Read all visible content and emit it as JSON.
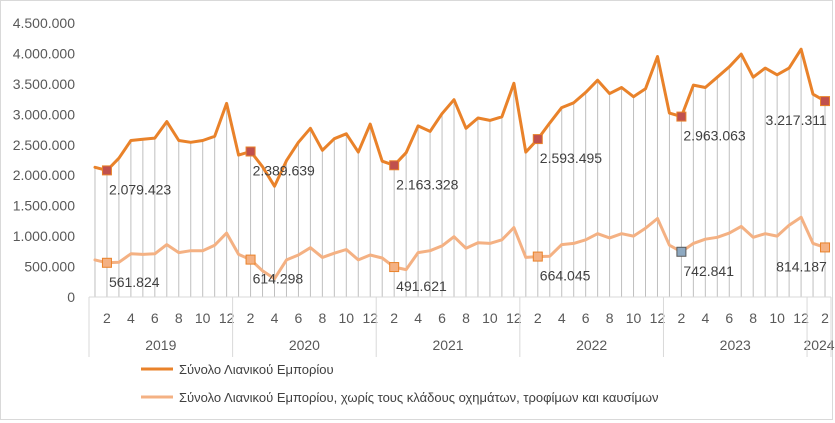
{
  "chart_data": {
    "type": "line",
    "ylim": [
      0,
      4500000
    ],
    "yticks": [
      "0",
      "500.000",
      "1.000.000",
      "1.500.000",
      "2.000.000",
      "2.500.000",
      "3.000.000",
      "3.500.000",
      "4.000.000",
      "4.500.000"
    ],
    "xlabel": "",
    "ylabel": "",
    "month_tick_labels": [
      "2",
      "4",
      "6",
      "8",
      "10",
      "12"
    ],
    "last_year_month_tick_labels": [
      "2"
    ],
    "years": [
      {
        "label": "2019",
        "months": 12
      },
      {
        "label": "2020",
        "months": 12
      },
      {
        "label": "2021",
        "months": 12
      },
      {
        "label": "2022",
        "months": 12
      },
      {
        "label": "2023",
        "months": 12
      },
      {
        "label": "2024",
        "months": 2
      }
    ],
    "grid": "vertical drop lines",
    "legend_position": "bottom",
    "series": [
      {
        "name": "Σύνολο Λιανικού Εμπορίου",
        "color": "#E9822A",
        "values": [
          2130000,
          2079423,
          2280000,
          2570000,
          2590000,
          2610000,
          2880000,
          2570000,
          2540000,
          2570000,
          2640000,
          3180000,
          2330000,
          2389639,
          2140000,
          1820000,
          2240000,
          2540000,
          2770000,
          2410000,
          2600000,
          2680000,
          2380000,
          2840000,
          2230000,
          2163328,
          2370000,
          2810000,
          2720000,
          3010000,
          3240000,
          2770000,
          2940000,
          2900000,
          2960000,
          3510000,
          2380000,
          2593495,
          2860000,
          3110000,
          3190000,
          3360000,
          3560000,
          3340000,
          3440000,
          3290000,
          3420000,
          3950000,
          3020000,
          2963063,
          3480000,
          3440000,
          3610000,
          3780000,
          3990000,
          3610000,
          3760000,
          3650000,
          3760000,
          4070000,
          3330000,
          3217311
        ],
        "labels": [
          {
            "index": 1,
            "text": "2.079.423"
          },
          {
            "index": 13,
            "text": "2.389.639"
          },
          {
            "index": 25,
            "text": "2.163.328"
          },
          {
            "index": 37,
            "text": "2.593.495"
          },
          {
            "index": 49,
            "text": "2.963.063"
          },
          {
            "index": 61,
            "text": "3.217.311"
          }
        ]
      },
      {
        "name": "Σύνολο Λιανικού Εμπορίου, χωρίς τους κλάδους οχημάτων, τροφίμων και καυσίμων",
        "color": "#F4B183",
        "values": [
          610000,
          561824,
          570000,
          710000,
          700000,
          710000,
          860000,
          730000,
          760000,
          760000,
          850000,
          1050000,
          700000,
          614298,
          430000,
          300000,
          610000,
          690000,
          810000,
          650000,
          720000,
          780000,
          610000,
          690000,
          640000,
          491621,
          450000,
          730000,
          760000,
          840000,
          990000,
          800000,
          890000,
          880000,
          940000,
          1140000,
          650000,
          664045,
          670000,
          860000,
          880000,
          940000,
          1040000,
          970000,
          1040000,
          1000000,
          1130000,
          1290000,
          850000,
          742841,
          880000,
          950000,
          980000,
          1050000,
          1160000,
          980000,
          1040000,
          1000000,
          1180000,
          1310000,
          880000,
          814187
        ],
        "labels": [
          {
            "index": 1,
            "text": "561.824"
          },
          {
            "index": 13,
            "text": "614.298"
          },
          {
            "index": 25,
            "text": "491.621"
          },
          {
            "index": 37,
            "text": "664.045"
          },
          {
            "index": 49,
            "text": "742.841"
          },
          {
            "index": 61,
            "text": "814.187"
          }
        ]
      }
    ],
    "marker_colors": {
      "series1": "#C0504D",
      "series2": "#F4B183",
      "series2_alt": "#8EA9C1"
    }
  }
}
